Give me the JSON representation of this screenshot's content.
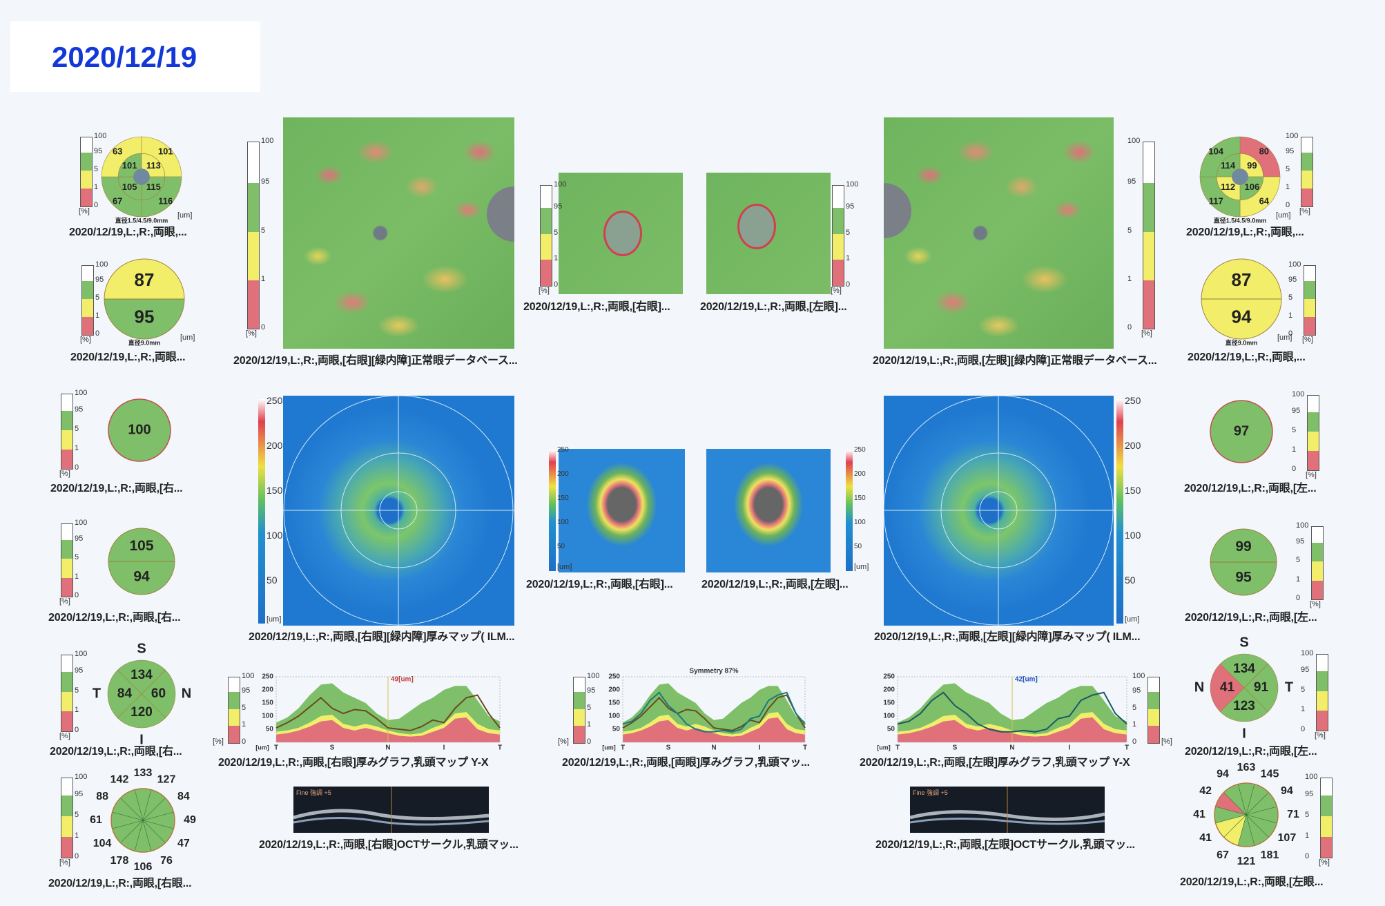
{
  "date_header": "2020/12/19",
  "colors": {
    "green": "#7fbf6a",
    "yellow": "#f2ee6a",
    "red": "#e0707a",
    "white": "#ffffff",
    "center": "#6f8aa0",
    "date_blue": "#1438d8"
  },
  "scale_pct": {
    "labels": [
      "100",
      "95",
      "5",
      "1",
      "0"
    ],
    "unit": "[%]"
  },
  "right_eye": {
    "sector": {
      "outer": {
        "tl": "63",
        "tr": "101",
        "bl": "67",
        "br": "116"
      },
      "inner": {
        "tl": "101",
        "tr": "113",
        "bl": "105",
        "br": "115"
      },
      "outer_colors": {
        "tl": "yellow",
        "tr": "yellow",
        "bl": "green",
        "br": "green"
      },
      "inner_colors": {
        "tl": "green",
        "tr": "yellow",
        "bl": "green",
        "br": "green"
      },
      "unit": "[um]",
      "footnote": "直径1.5/4.5/9.0mm",
      "caption": "2020/12/19,L:,R:,両眼,..."
    },
    "halves": {
      "top": "87",
      "bottom": "95",
      "top_color": "yellow",
      "bottom_color": "green",
      "unit": "[um]",
      "footnote": "直径9.0mm",
      "caption": "2020/12/19,L:,R:,両眼..."
    },
    "single": {
      "value": "100",
      "color": "green",
      "caption": "2020/12/19,L:,R:,両眼,[右..."
    },
    "halves2": {
      "top": "105",
      "bottom": "94",
      "top_color": "green",
      "bottom_color": "green",
      "caption": "2020/12/19,L:,R:,両眼,[右..."
    },
    "tsni": {
      "S": "134",
      "T": "84",
      "N": "60",
      "I": "120",
      "colors": {
        "S": "green",
        "T": "green",
        "N": "green",
        "I": "green"
      },
      "labels": {
        "S": "S",
        "T": "T",
        "N": "N",
        "I": "I"
      },
      "caption": "2020/12/19,L:,R:,両眼,[右..."
    },
    "clock": {
      "values": [
        "133",
        "127",
        "84",
        "49",
        "47",
        "76",
        "106",
        "178",
        "104",
        "61",
        "88",
        "142"
      ],
      "colors": [
        "green",
        "green",
        "green",
        "green",
        "green",
        "green",
        "green",
        "green",
        "green",
        "green",
        "green",
        "green"
      ],
      "caption": "2020/12/19,L:,R:,両眼,[右眼..."
    },
    "deviation_map_caption": "2020/12/19,L:,R:,両眼,[右眼][緑内障]正常眼データベース...",
    "disc_map_caption": "2020/12/19,L:,R:,両眼,[右眼]...",
    "thickness_map_caption": "2020/12/19,L:,R:,両眼,[右眼][緑内障]厚みマップ( ILM...",
    "disc_thickness_caption": "2020/12/19,L:,R:,両眼,[右眼]...",
    "graph_caption": "2020/12/19,L:,R:,両眼,[右眼]厚みグラフ,乳頭マップ Y-X",
    "oct_caption": "2020/12/19,L:,R:,両眼,[右眼]OCTサークル,乳頭マッ...",
    "oct_label": "Fine 強調 +5"
  },
  "left_eye": {
    "sector": {
      "outer": {
        "tl": "104",
        "tr": "80",
        "bl": "117",
        "br": "64"
      },
      "inner": {
        "tl": "114",
        "tr": "99",
        "bl": "112",
        "br": "106"
      },
      "outer_colors": {
        "tl": "green",
        "tr": "red",
        "bl": "green",
        "br": "yellow"
      },
      "inner_colors": {
        "tl": "green",
        "tr": "yellow",
        "bl": "yellow",
        "br": "green"
      },
      "unit": "[um]",
      "footnote": "直径1.5/4.5/9.0mm",
      "caption": "2020/12/19,L:,R:,両眼,..."
    },
    "halves": {
      "top": "87",
      "bottom": "94",
      "top_color": "yellow",
      "bottom_color": "yellow",
      "unit": "[um]",
      "footnote": "直径9.0mm",
      "caption": "2020/12/19,L:,R:,両眼,..."
    },
    "single": {
      "value": "97",
      "color": "green",
      "caption": "2020/12/19,L:,R:,両眼,[左..."
    },
    "halves2": {
      "top": "99",
      "bottom": "95",
      "top_color": "green",
      "bottom_color": "green",
      "caption": "2020/12/19,L:,R:,両眼,[左..."
    },
    "tsni": {
      "S": "134",
      "T": "91",
      "N": "41",
      "I": "123",
      "colors": {
        "S": "green",
        "T": "green",
        "N": "red",
        "I": "green"
      },
      "labels": {
        "S": "S",
        "T": "T",
        "N": "N",
        "I": "I"
      },
      "caption": "2020/12/19,L:,R:,両眼,[左..."
    },
    "clock": {
      "values": [
        "163",
        "145",
        "94",
        "71",
        "107",
        "181",
        "121",
        "67",
        "41",
        "41",
        "42",
        "94"
      ],
      "colors": [
        "green",
        "green",
        "green",
        "green",
        "green",
        "green",
        "green",
        "yellow",
        "yellow",
        "green",
        "red",
        "green"
      ],
      "caption": "2020/12/19,L:,R:,両眼,[左眼..."
    },
    "deviation_map_caption": "2020/12/19,L:,R:,両眼,[左眼][緑内障]正常眼データベース...",
    "disc_map_caption": "2020/12/19,L:,R:,両眼,[左眼]...",
    "thickness_map_caption": "2020/12/19,L:,R:,両眼,[左眼][緑内障]厚みマップ( ILM...",
    "disc_thickness_caption": "2020/12/19,L:,R:,両眼,[左眼]...",
    "graph_caption": "2020/12/19,L:,R:,両眼,[左眼]厚みグラフ,乳頭マップ Y-X",
    "oct_caption": "2020/12/19,L:,R:,両眼,[左眼]OCTサークル,乳頭マッ...",
    "oct_label": "Fine 強調 +5"
  },
  "both_graph_caption": "2020/12/19,L:,R:,両眼,[両眼]厚みグラフ,乳頭マッ...",
  "thickness_scale": {
    "labels": [
      "250",
      "200",
      "150",
      "100",
      "50"
    ],
    "unit": "[um]"
  },
  "chart_data": [
    {
      "type": "area",
      "name": "right",
      "marker": "49[um]",
      "x_labels": [
        "T",
        "S",
        "N",
        "I",
        "T"
      ],
      "xlabel_unit": "[um]",
      "yticks": [
        "250",
        "200",
        "150",
        "100",
        "50"
      ],
      "ylim": [
        0,
        250
      ],
      "bands": {
        "p1": [
          30,
          35,
          45,
          60,
          80,
          85,
          55,
          45,
          55,
          45,
          35,
          25,
          22,
          25,
          40,
          55,
          90,
          95,
          50,
          35,
          30
        ],
        "p5": [
          40,
          45,
          55,
          75,
          100,
          105,
          70,
          60,
          70,
          60,
          45,
          35,
          30,
          35,
          55,
          70,
          110,
          115,
          70,
          50,
          45
        ],
        "p95": [
          75,
          95,
          130,
          180,
          220,
          225,
          190,
          170,
          150,
          110,
          85,
          90,
          120,
          150,
          170,
          200,
          215,
          215,
          160,
          100,
          80
        ]
      },
      "lines": [
        {
          "eye": "right",
          "color": "#6b4a1e",
          "values": [
            55,
            75,
            100,
            135,
            170,
            130,
            110,
            125,
            120,
            90,
            55,
            50,
            45,
            60,
            85,
            75,
            130,
            170,
            180,
            110,
            55
          ]
        }
      ]
    },
    {
      "type": "area",
      "name": "both",
      "title": "Symmetry 87%",
      "x_labels": [
        "T",
        "S",
        "N",
        "I",
        "T"
      ],
      "xlabel_unit": "[um]",
      "yticks": [
        "250",
        "200",
        "150",
        "100",
        "50"
      ],
      "ylim": [
        0,
        250
      ],
      "bands": {
        "p1": [
          30,
          35,
          45,
          60,
          80,
          85,
          55,
          45,
          55,
          45,
          35,
          25,
          22,
          25,
          40,
          55,
          90,
          95,
          50,
          35,
          30
        ],
        "p5": [
          40,
          45,
          55,
          75,
          100,
          105,
          70,
          60,
          70,
          60,
          45,
          35,
          30,
          35,
          55,
          70,
          110,
          115,
          70,
          50,
          45
        ],
        "p95": [
          75,
          95,
          130,
          180,
          220,
          225,
          190,
          170,
          150,
          110,
          85,
          90,
          120,
          150,
          170,
          200,
          215,
          215,
          160,
          100,
          80
        ]
      },
      "lines": [
        {
          "eye": "right",
          "color": "#6b4a1e",
          "values": [
            55,
            75,
            100,
            135,
            170,
            130,
            110,
            125,
            120,
            90,
            55,
            50,
            45,
            60,
            85,
            75,
            130,
            170,
            180,
            110,
            55
          ]
        },
        {
          "eye": "left",
          "color": "#1a7a80",
          "values": [
            70,
            80,
            110,
            160,
            190,
            140,
            110,
            70,
            50,
            40,
            40,
            45,
            40,
            50,
            90,
            100,
            160,
            180,
            190,
            110,
            70
          ]
        }
      ]
    },
    {
      "type": "area",
      "name": "left",
      "marker": "42[um]",
      "x_labels": [
        "T",
        "S",
        "N",
        "I",
        "T"
      ],
      "xlabel_unit": "[um]",
      "yticks": [
        "250",
        "200",
        "150",
        "100",
        "50"
      ],
      "ylim": [
        0,
        250
      ],
      "bands": {
        "p1": [
          30,
          35,
          45,
          60,
          80,
          85,
          55,
          45,
          55,
          45,
          35,
          25,
          22,
          25,
          40,
          55,
          90,
          95,
          50,
          35,
          30
        ],
        "p5": [
          40,
          45,
          55,
          75,
          100,
          105,
          70,
          60,
          70,
          60,
          45,
          35,
          30,
          35,
          55,
          70,
          110,
          115,
          70,
          50,
          45
        ],
        "p95": [
          75,
          95,
          130,
          180,
          220,
          225,
          190,
          170,
          150,
          110,
          85,
          90,
          120,
          150,
          170,
          200,
          215,
          215,
          160,
          100,
          80
        ]
      },
      "lines": [
        {
          "eye": "left",
          "color": "#1a5a60",
          "values": [
            70,
            80,
            110,
            160,
            190,
            140,
            110,
            70,
            50,
            40,
            40,
            45,
            40,
            50,
            90,
            100,
            160,
            180,
            190,
            110,
            70
          ]
        }
      ]
    }
  ]
}
